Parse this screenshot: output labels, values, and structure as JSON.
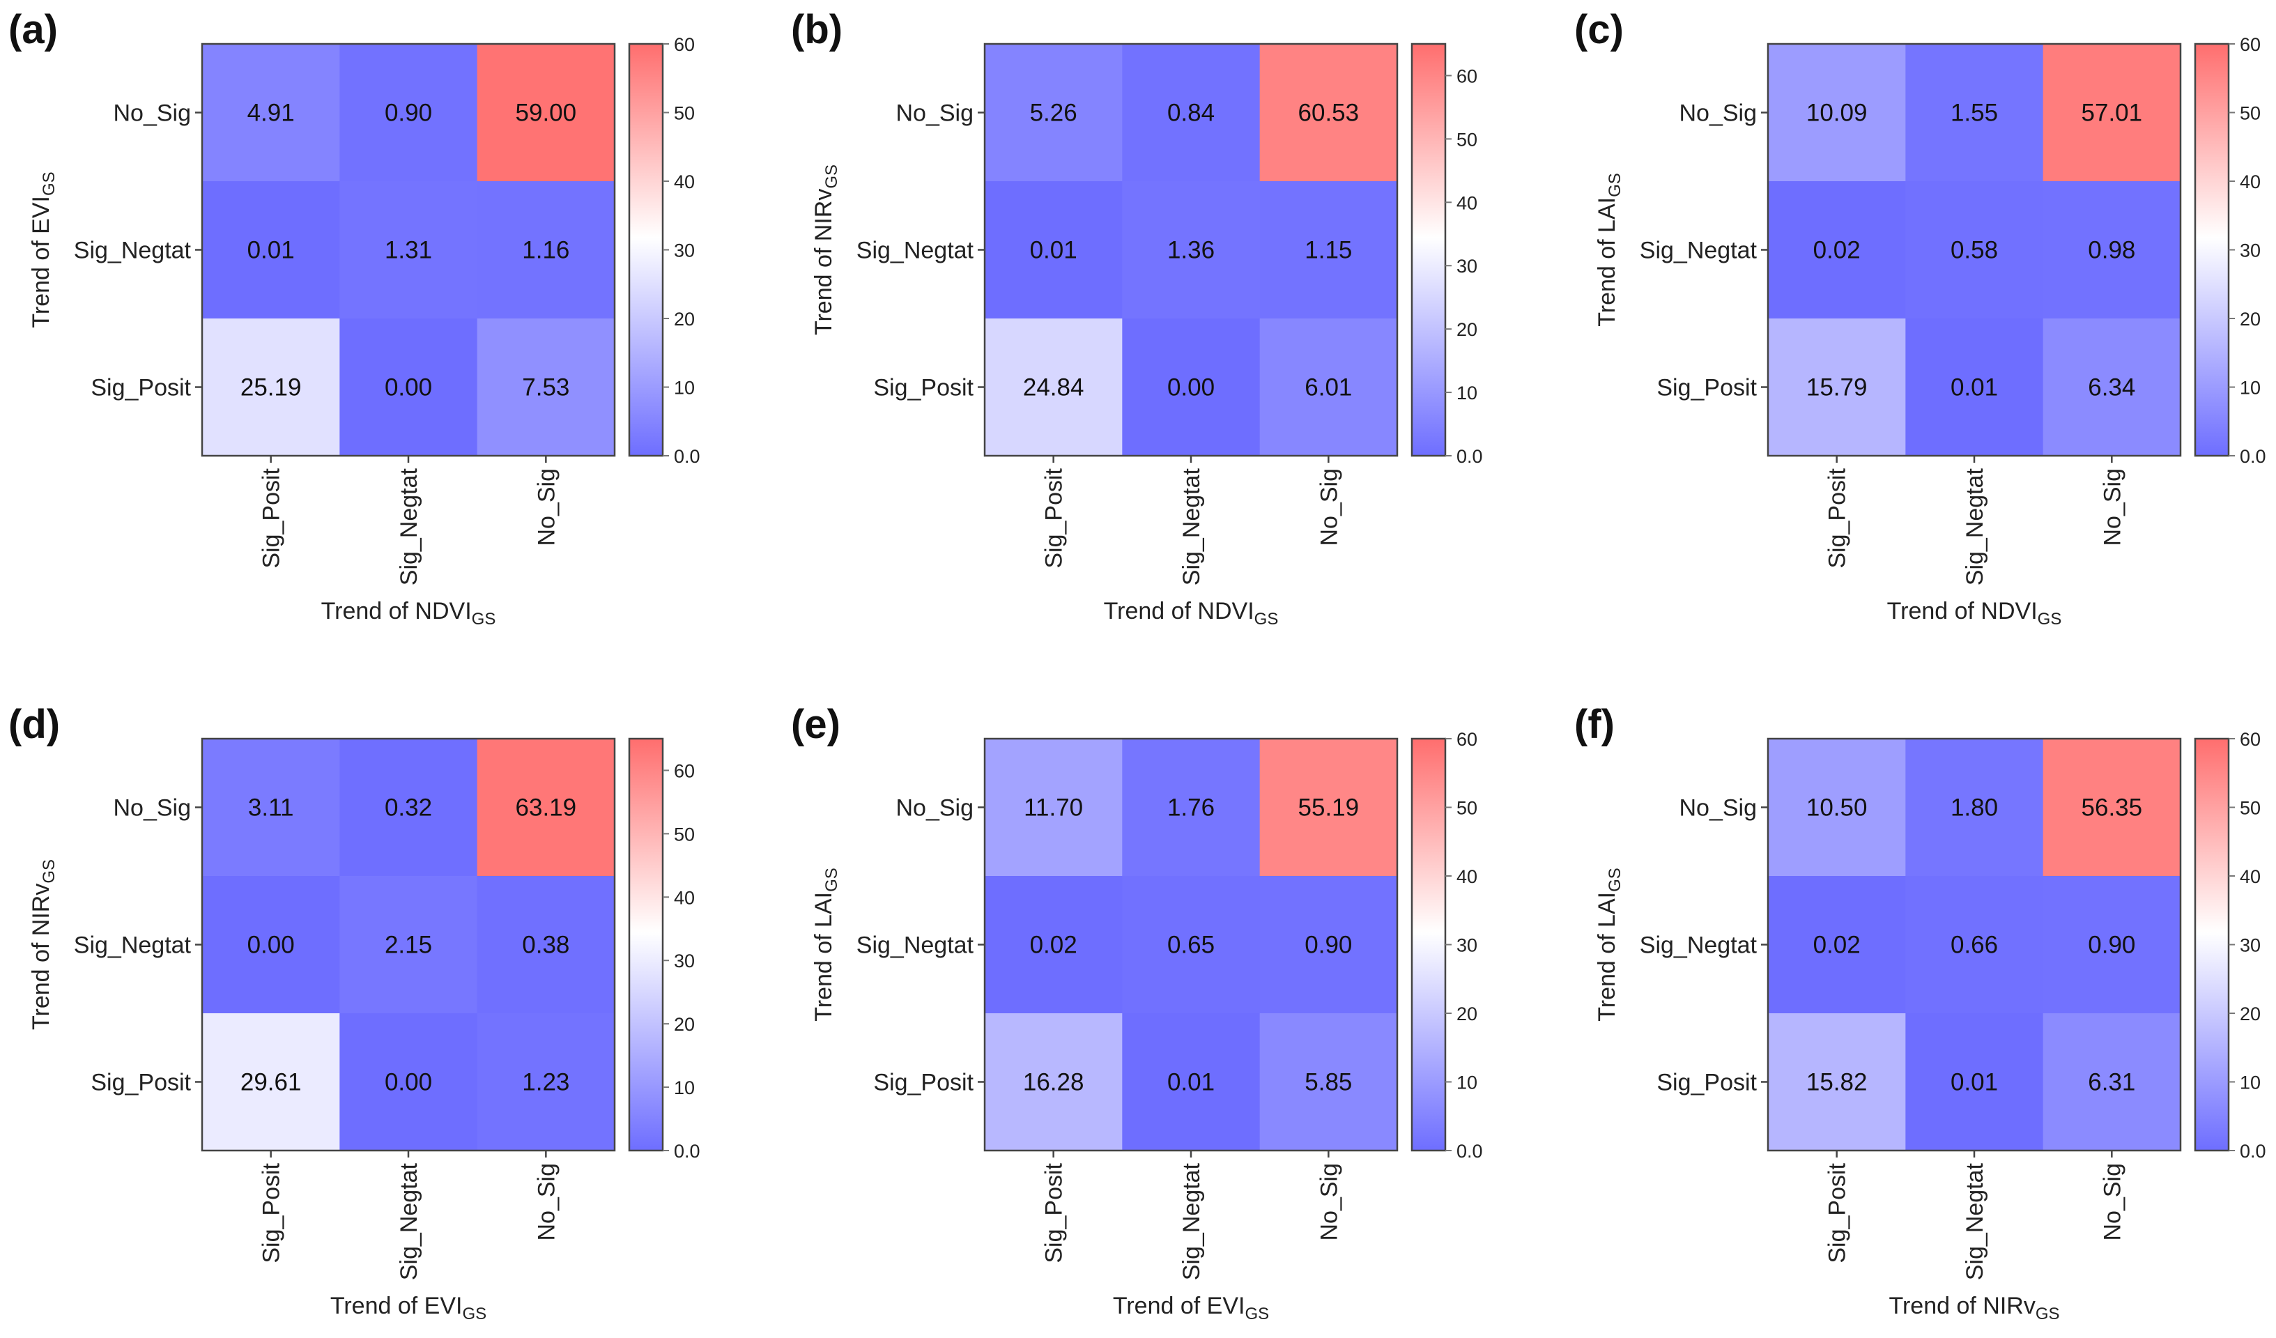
{
  "chart_data": {
    "type": "heatmap",
    "colors": {
      "low": "#6e6eff",
      "mid": "#ffffff",
      "high": "#ff6e6e"
    },
    "row_labels": [
      "No_Sig",
      "Sig_Negtat",
      "Sig_Posit"
    ],
    "col_labels": [
      "Sig_Posit",
      "Sig_Negtat",
      "No_Sig"
    ],
    "colorbar_ticks": [
      "0.0",
      "10",
      "20",
      "30",
      "40",
      "50",
      "60"
    ],
    "panels": [
      {
        "label": "(a)",
        "ylabel": {
          "main": "Trend of EVI",
          "sub": "GS"
        },
        "xlabel": {
          "main": "Trend of NDVI",
          "sub": "GS"
        },
        "vmax": 60,
        "values": [
          [
            4.91,
            0.9,
            59.0
          ],
          [
            0.01,
            1.31,
            1.16
          ],
          [
            25.19,
            0.0,
            7.53
          ]
        ]
      },
      {
        "label": "(b)",
        "ylabel": {
          "main": "Trend of NIRv",
          "sub": "GS"
        },
        "xlabel": {
          "main": "Trend of NDVI",
          "sub": "GS"
        },
        "vmax": 65,
        "values": [
          [
            5.26,
            0.84,
            60.53
          ],
          [
            0.01,
            1.36,
            1.15
          ],
          [
            24.84,
            0.0,
            6.01
          ]
        ]
      },
      {
        "label": "(c)",
        "ylabel": {
          "main": "Trend of LAI",
          "sub": "GS"
        },
        "xlabel": {
          "main": "Trend of NDVI",
          "sub": "GS"
        },
        "vmax": 60,
        "values": [
          [
            10.09,
            1.55,
            57.01
          ],
          [
            0.02,
            0.58,
            0.98
          ],
          [
            15.79,
            0.01,
            6.34
          ]
        ]
      },
      {
        "label": "(d)",
        "ylabel": {
          "main": "Trend of NIRv",
          "sub": "GS"
        },
        "xlabel": {
          "main": "Trend of EVI",
          "sub": "GS"
        },
        "vmax": 65,
        "values": [
          [
            3.11,
            0.32,
            63.19
          ],
          [
            0.0,
            2.15,
            0.38
          ],
          [
            29.61,
            0.0,
            1.23
          ]
        ]
      },
      {
        "label": "(e)",
        "ylabel": {
          "main": "Trend of LAI",
          "sub": "GS"
        },
        "xlabel": {
          "main": "Trend of EVI",
          "sub": "GS"
        },
        "vmax": 60,
        "values": [
          [
            11.7,
            1.76,
            55.19
          ],
          [
            0.02,
            0.65,
            0.9
          ],
          [
            16.28,
            0.01,
            5.85
          ]
        ]
      },
      {
        "label": "(f)",
        "ylabel": {
          "main": "Trend of LAI",
          "sub": "GS"
        },
        "xlabel": {
          "main": "Trend of NIRv",
          "sub": "GS"
        },
        "vmax": 60,
        "values": [
          [
            10.5,
            1.8,
            56.35
          ],
          [
            0.02,
            0.66,
            0.9
          ],
          [
            15.82,
            0.01,
            6.31
          ]
        ]
      }
    ]
  }
}
